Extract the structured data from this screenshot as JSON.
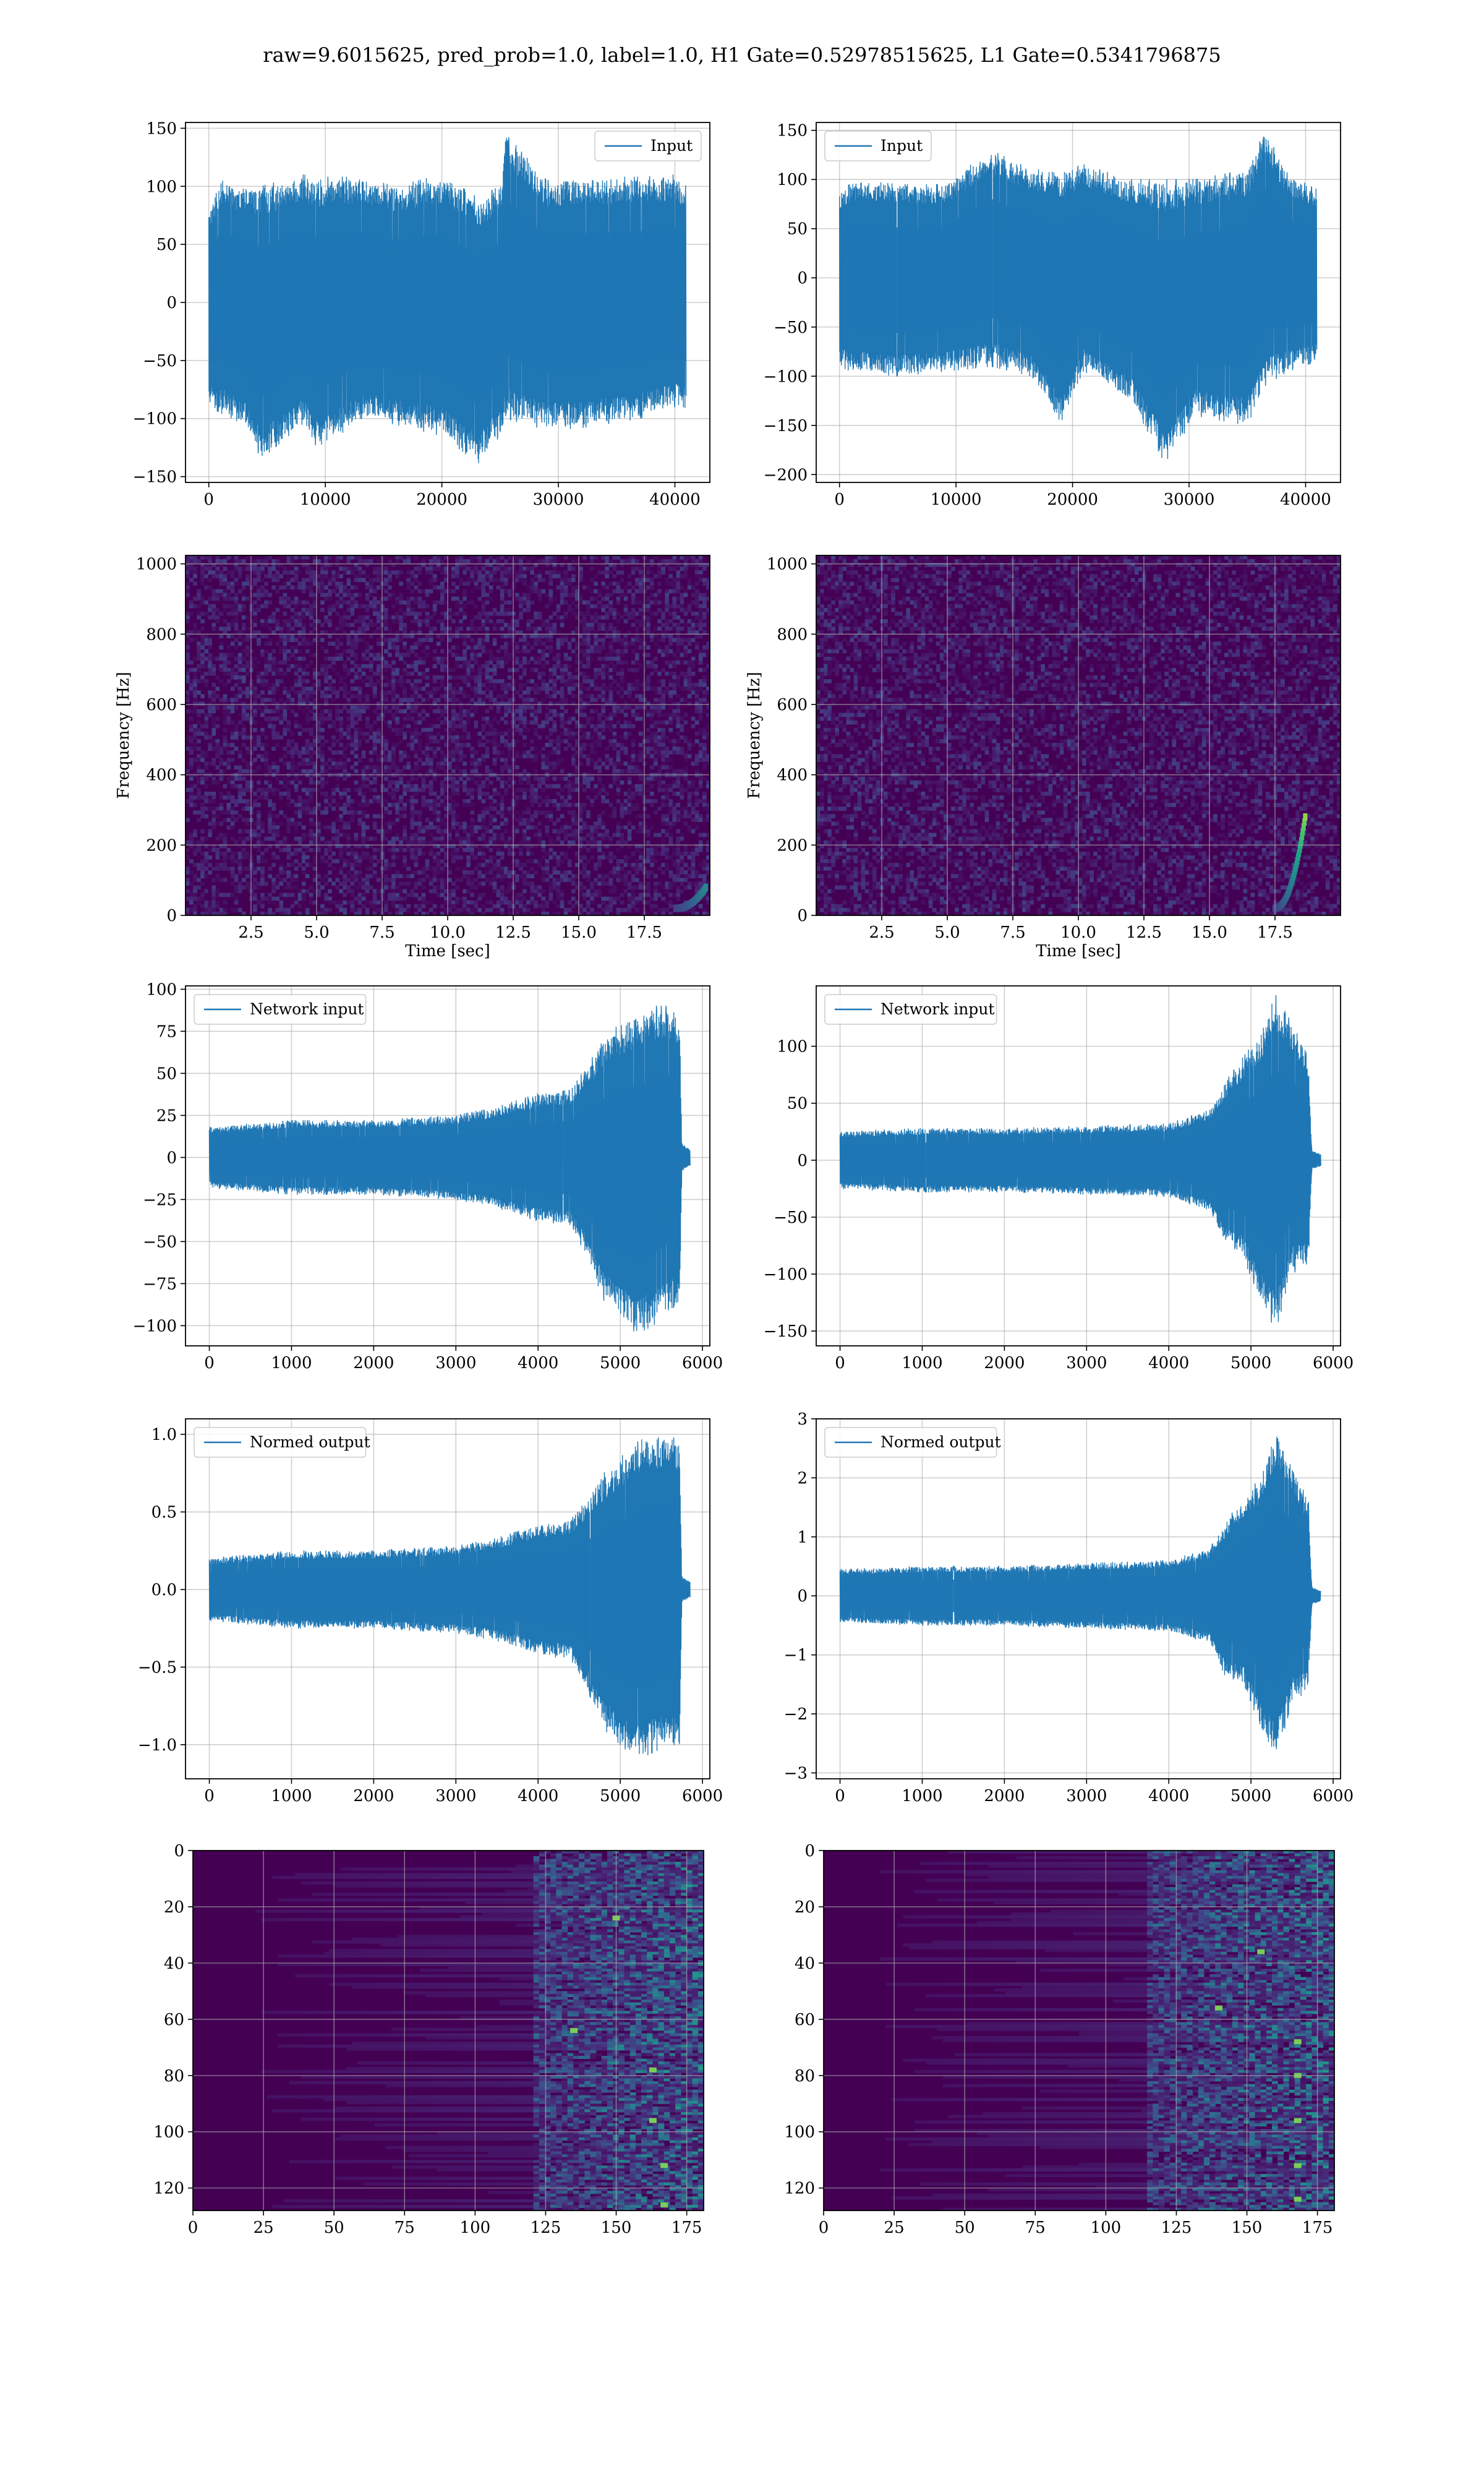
{
  "figure": {
    "suptitle": "raw=9.6015625, pred_prob=1.0, label=1.0, H1 Gate=0.52978515625, L1 Gate=0.5341796875"
  },
  "colors": {
    "series": "#1f77b4",
    "grid": "#b0b0b0",
    "viridis_dark": "#440154",
    "viridis_mid": "#21918c",
    "viridis_bright": "#5ec962",
    "viridis_top": "#fde725"
  },
  "chart_data": [
    {
      "id": "h1-input",
      "type": "line",
      "legend": [
        "Input"
      ],
      "legend_loc": "upper right",
      "xlim": [
        -2000,
        43000
      ],
      "ylim": [
        -155,
        155
      ],
      "xticks": [
        0,
        10000,
        20000,
        30000,
        40000
      ],
      "yticks": [
        -150,
        -100,
        -50,
        0,
        50,
        100,
        150
      ],
      "grid": true,
      "series": [
        {
          "name": "Input",
          "x_range": [
            0,
            40960
          ],
          "envelope": [
            [
              0,
              80,
              -90
            ],
            [
              1000,
              105,
              -95
            ],
            [
              3000,
              100,
              -105
            ],
            [
              4500,
              100,
              -135
            ],
            [
              8000,
              110,
              -105
            ],
            [
              9500,
              108,
              -128
            ],
            [
              13000,
              108,
              -100
            ],
            [
              16000,
              100,
              -105
            ],
            [
              20000,
              110,
              -115
            ],
            [
              22000,
              100,
              -130
            ],
            [
              23000,
              90,
              -140
            ],
            [
              25000,
              100,
              -115
            ],
            [
              25500,
              145,
              -100
            ],
            [
              29000,
              105,
              -110
            ],
            [
              32000,
              108,
              -108
            ],
            [
              37000,
              108,
              -100
            ],
            [
              40000,
              110,
              -90
            ],
            [
              40960,
              100,
              -95
            ]
          ]
        }
      ]
    },
    {
      "id": "l1-input",
      "type": "line",
      "legend": [
        "Input"
      ],
      "legend_loc": "upper left",
      "xlim": [
        -2000,
        43000
      ],
      "ylim": [
        -208,
        158
      ],
      "xticks": [
        0,
        10000,
        20000,
        30000,
        40000
      ],
      "yticks": [
        -200,
        -150,
        -100,
        -50,
        0,
        50,
        100,
        150
      ],
      "grid": true,
      "series": [
        {
          "name": "Input",
          "x_range": [
            0,
            40960
          ],
          "envelope": [
            [
              0,
              85,
              -90
            ],
            [
              1000,
              100,
              -95
            ],
            [
              5000,
              95,
              -100
            ],
            [
              9000,
              95,
              -95
            ],
            [
              13000,
              130,
              -90
            ],
            [
              16500,
              110,
              -100
            ],
            [
              19000,
              110,
              -150
            ],
            [
              21000,
              115,
              -95
            ],
            [
              25000,
              100,
              -125
            ],
            [
              28000,
              100,
              -190
            ],
            [
              30500,
              100,
              -140
            ],
            [
              35000,
              110,
              -150
            ],
            [
              36500,
              150,
              -110
            ],
            [
              38500,
              105,
              -95
            ],
            [
              40960,
              90,
              -85
            ]
          ]
        }
      ]
    },
    {
      "id": "h1-spectrogram",
      "type": "heatmap",
      "xlabel": "Time [sec]",
      "ylabel": "Frequency [Hz]",
      "xlim": [
        0,
        20
      ],
      "ylim": [
        0,
        1024
      ],
      "xticks": [
        2.5,
        5.0,
        7.5,
        10.0,
        12.5,
        15.0,
        17.5
      ],
      "xticklabels": [
        "2.5",
        "5.0",
        "7.5",
        "10.0",
        "12.5",
        "15.0",
        "17.5"
      ],
      "yticks": [
        0,
        200,
        400,
        600,
        800,
        1000
      ],
      "grid": true,
      "chirp": {
        "t_end": 19.8,
        "f_max": 60,
        "peak": 0.45
      }
    },
    {
      "id": "l1-spectrogram",
      "type": "heatmap",
      "xlabel": "Time [sec]",
      "ylabel": "Frequency [Hz]",
      "xlim": [
        0,
        20
      ],
      "ylim": [
        0,
        1024
      ],
      "xticks": [
        2.5,
        5.0,
        7.5,
        10.0,
        12.5,
        15.0,
        17.5
      ],
      "xticklabels": [
        "2.5",
        "5.0",
        "7.5",
        "10.0",
        "12.5",
        "15.0",
        "17.5"
      ],
      "yticks": [
        0,
        200,
        400,
        600,
        800,
        1000
      ],
      "grid": true,
      "chirp": {
        "t_end": 18.6,
        "f_max": 260,
        "peak": 0.95
      }
    },
    {
      "id": "h1-network-input",
      "type": "line",
      "legend": [
        "Network input"
      ],
      "legend_loc": "upper left",
      "xlim": [
        -290,
        6090
      ],
      "ylim": [
        -112,
        102
      ],
      "xticks": [
        0,
        1000,
        2000,
        3000,
        4000,
        5000,
        6000
      ],
      "yticks": [
        -100,
        -75,
        -50,
        -25,
        0,
        25,
        50,
        75,
        100
      ],
      "grid": true,
      "series": [
        {
          "name": "Network input",
          "x_range": [
            0,
            5850
          ],
          "envelope": [
            [
              0,
              18,
              -18
            ],
            [
              1000,
              22,
              -22
            ],
            [
              2000,
              22,
              -22
            ],
            [
              3000,
              25,
              -25
            ],
            [
              3500,
              30,
              -30
            ],
            [
              4000,
              38,
              -38
            ],
            [
              4400,
              40,
              -40
            ],
            [
              4600,
              55,
              -60
            ],
            [
              4800,
              70,
              -85
            ],
            [
              5000,
              80,
              -95
            ],
            [
              5200,
              85,
              -105
            ],
            [
              5400,
              90,
              -100
            ],
            [
              5600,
              90,
              -90
            ],
            [
              5720,
              85,
              -95
            ],
            [
              5750,
              8,
              -8
            ],
            [
              5850,
              5,
              -5
            ]
          ]
        }
      ]
    },
    {
      "id": "l1-network-input",
      "type": "line",
      "legend": [
        "Network input"
      ],
      "legend_loc": "upper left",
      "xlim": [
        -290,
        6090
      ],
      "ylim": [
        -163,
        153
      ],
      "xticks": [
        0,
        1000,
        2000,
        3000,
        4000,
        5000,
        6000
      ],
      "yticks": [
        -150,
        -100,
        -50,
        0,
        50,
        100
      ],
      "grid": true,
      "series": [
        {
          "name": "Network input",
          "x_range": [
            0,
            5850
          ],
          "envelope": [
            [
              0,
              25,
              -25
            ],
            [
              1000,
              28,
              -28
            ],
            [
              2000,
              28,
              -28
            ],
            [
              3000,
              30,
              -30
            ],
            [
              4000,
              32,
              -32
            ],
            [
              4500,
              45,
              -45
            ],
            [
              4700,
              70,
              -75
            ],
            [
              4900,
              90,
              -85
            ],
            [
              5100,
              110,
              -120
            ],
            [
              5300,
              145,
              -150
            ],
            [
              5500,
              120,
              -100
            ],
            [
              5700,
              90,
              -90
            ],
            [
              5740,
              8,
              -8
            ],
            [
              5850,
              5,
              -5
            ]
          ]
        }
      ]
    },
    {
      "id": "h1-normed-output",
      "type": "line",
      "legend": [
        "Normed output"
      ],
      "legend_loc": "upper left",
      "xlim": [
        -290,
        6090
      ],
      "ylim": [
        -1.22,
        1.1
      ],
      "xticks": [
        0,
        1000,
        2000,
        3000,
        4000,
        5000,
        6000
      ],
      "yticks": [
        -1.0,
        -0.5,
        0.0,
        0.5,
        1.0
      ],
      "yticklabels": [
        "−1.0",
        "−0.5",
        "0.0",
        "0.5",
        "1.0"
      ],
      "grid": true,
      "series": [
        {
          "name": "Normed output",
          "x_range": [
            0,
            5850
          ],
          "envelope": [
            [
              0,
              0.2,
              -0.2
            ],
            [
              1000,
              0.25,
              -0.25
            ],
            [
              2000,
              0.25,
              -0.25
            ],
            [
              3000,
              0.28,
              -0.28
            ],
            [
              3500,
              0.33,
              -0.33
            ],
            [
              4000,
              0.42,
              -0.42
            ],
            [
              4400,
              0.45,
              -0.45
            ],
            [
              4600,
              0.6,
              -0.65
            ],
            [
              4800,
              0.75,
              -0.9
            ],
            [
              5000,
              0.85,
              -1.0
            ],
            [
              5200,
              0.95,
              -1.1
            ],
            [
              5400,
              1.0,
              -1.05
            ],
            [
              5600,
              1.0,
              -1.0
            ],
            [
              5720,
              0.95,
              -1.05
            ],
            [
              5750,
              0.08,
              -0.08
            ],
            [
              5850,
              0.05,
              -0.05
            ]
          ]
        }
      ]
    },
    {
      "id": "l1-normed-output",
      "type": "line",
      "legend": [
        "Normed output"
      ],
      "legend_loc": "upper left",
      "xlim": [
        -290,
        6090
      ],
      "ylim": [
        -3.1,
        3.0
      ],
      "xticks": [
        0,
        1000,
        2000,
        3000,
        4000,
        5000,
        6000
      ],
      "yticks": [
        -3,
        -2,
        -1,
        0,
        1,
        2,
        3
      ],
      "grid": true,
      "series": [
        {
          "name": "Normed output",
          "x_range": [
            0,
            5850
          ],
          "envelope": [
            [
              0,
              0.45,
              -0.45
            ],
            [
              1000,
              0.5,
              -0.5
            ],
            [
              2000,
              0.5,
              -0.5
            ],
            [
              3000,
              0.55,
              -0.55
            ],
            [
              4000,
              0.6,
              -0.6
            ],
            [
              4500,
              0.8,
              -0.8
            ],
            [
              4700,
              1.3,
              -1.4
            ],
            [
              4900,
              1.6,
              -1.5
            ],
            [
              5100,
              2.0,
              -2.2
            ],
            [
              5300,
              2.8,
              -2.8
            ],
            [
              5500,
              2.2,
              -1.8
            ],
            [
              5700,
              1.6,
              -1.6
            ],
            [
              5740,
              0.15,
              -0.15
            ],
            [
              5850,
              0.08,
              -0.08
            ]
          ]
        }
      ]
    },
    {
      "id": "h1-feature-map",
      "type": "heatmap",
      "xlim": [
        0,
        181
      ],
      "ylim": [
        128,
        0
      ],
      "xticks": [
        0,
        25,
        50,
        75,
        100,
        125,
        150,
        175
      ],
      "yticks": [
        0,
        20,
        40,
        60,
        80,
        100,
        120
      ],
      "grid": true,
      "activity_onset": 120,
      "hotspots": [
        [
          163,
          78
        ],
        [
          163,
          96
        ],
        [
          167,
          112
        ],
        [
          167,
          126
        ],
        [
          135,
          64
        ],
        [
          150,
          24
        ]
      ]
    },
    {
      "id": "l1-feature-map",
      "type": "heatmap",
      "xlim": [
        0,
        181
      ],
      "ylim": [
        128,
        0
      ],
      "xticks": [
        0,
        25,
        50,
        75,
        100,
        125,
        150,
        175
      ],
      "yticks": [
        0,
        20,
        40,
        60,
        80,
        100,
        120
      ],
      "grid": true,
      "activity_onset": 115,
      "hotspots": [
        [
          168,
          68
        ],
        [
          168,
          80
        ],
        [
          168,
          96
        ],
        [
          168,
          112
        ],
        [
          168,
          124
        ],
        [
          140,
          56
        ],
        [
          155,
          36
        ]
      ]
    }
  ]
}
